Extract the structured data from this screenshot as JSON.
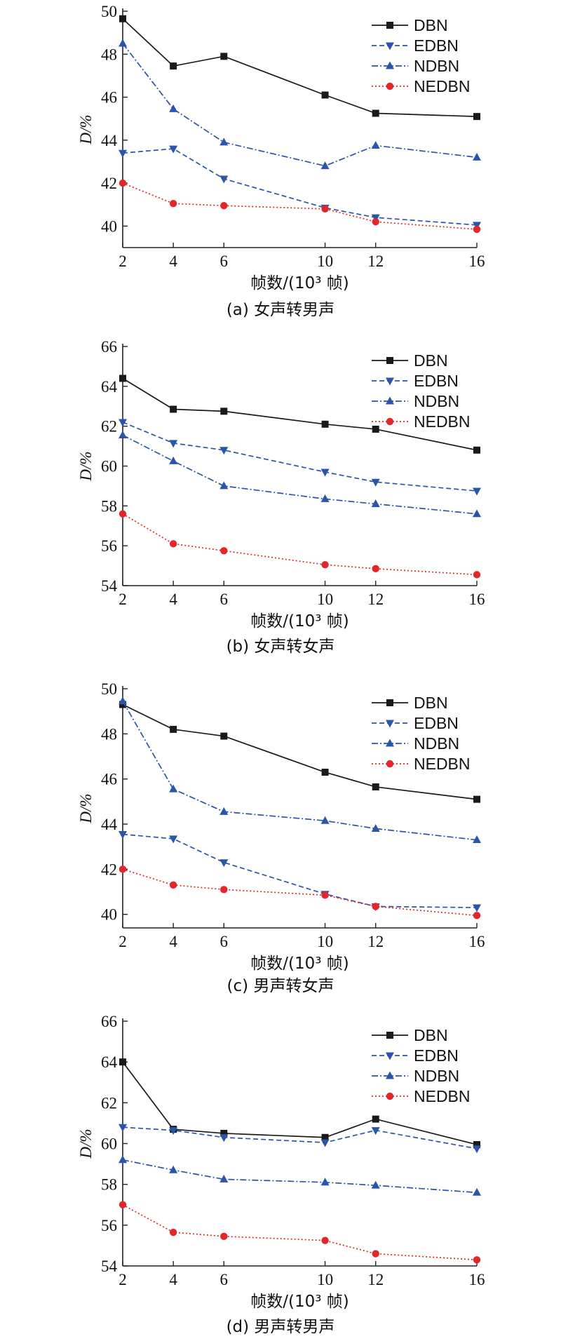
{
  "chart_data": [
    {
      "type": "line",
      "caption": "(a) 女声转男声",
      "xlabel": "帧数/(10³ 帧)",
      "ylabel": "D/%",
      "x": [
        2,
        4,
        6,
        10,
        12,
        16
      ],
      "ylim": [
        39,
        50
      ],
      "yticks": [
        40,
        42,
        44,
        46,
        48,
        50
      ],
      "legend_position": "top-right",
      "series": [
        {
          "name": "DBN",
          "values": [
            49.65,
            47.45,
            47.9,
            46.1,
            45.25,
            45.1
          ]
        },
        {
          "name": "EDBN",
          "values": [
            43.4,
            43.6,
            42.2,
            40.85,
            40.4,
            40.05
          ]
        },
        {
          "name": "NDBN",
          "values": [
            48.5,
            45.45,
            43.9,
            42.8,
            43.75,
            43.2
          ]
        },
        {
          "name": "NEDBN",
          "values": [
            42.0,
            41.05,
            40.95,
            40.8,
            40.2,
            39.85
          ]
        }
      ]
    },
    {
      "type": "line",
      "caption": "(b) 女声转女声",
      "xlabel": "帧数/(10³ 帧)",
      "ylabel": "D/%",
      "x": [
        2,
        4,
        6,
        10,
        12,
        16
      ],
      "ylim": [
        54,
        66
      ],
      "yticks": [
        54,
        56,
        58,
        60,
        62,
        64,
        66
      ],
      "legend_position": "top-right",
      "series": [
        {
          "name": "DBN",
          "values": [
            64.4,
            62.85,
            62.75,
            62.1,
            61.85,
            60.8
          ]
        },
        {
          "name": "EDBN",
          "values": [
            62.2,
            61.15,
            60.8,
            59.7,
            59.2,
            58.75
          ]
        },
        {
          "name": "NDBN",
          "values": [
            61.55,
            60.25,
            59.0,
            58.35,
            58.1,
            57.6
          ]
        },
        {
          "name": "NEDBN",
          "values": [
            57.6,
            56.1,
            55.75,
            55.05,
            54.85,
            54.55
          ]
        }
      ]
    },
    {
      "type": "line",
      "caption": "(c) 男声转女声",
      "xlabel": "帧数/(10³ 帧)",
      "ylabel": "D/%",
      "x": [
        2,
        4,
        6,
        10,
        12,
        16
      ],
      "ylim": [
        39.4,
        50
      ],
      "yticks": [
        40,
        42,
        44,
        46,
        48,
        50
      ],
      "legend_position": "top-right",
      "series": [
        {
          "name": "DBN",
          "values": [
            49.3,
            48.2,
            47.9,
            46.3,
            45.65,
            45.1
          ]
        },
        {
          "name": "EDBN",
          "values": [
            43.55,
            43.35,
            42.3,
            40.9,
            40.35,
            40.3
          ]
        },
        {
          "name": "NDBN",
          "values": [
            49.45,
            45.55,
            44.55,
            44.15,
            43.8,
            43.3
          ]
        },
        {
          "name": "NEDBN",
          "values": [
            42.0,
            41.3,
            41.1,
            40.85,
            40.35,
            39.95
          ]
        }
      ]
    },
    {
      "type": "line",
      "caption": "(d) 男声转男声",
      "xlabel": "帧数/(10³ 帧)",
      "ylabel": "D/%",
      "x": [
        2,
        4,
        6,
        10,
        12,
        16
      ],
      "ylim": [
        54,
        66
      ],
      "yticks": [
        54,
        56,
        58,
        60,
        62,
        64,
        66
      ],
      "legend_position": "top-right",
      "series": [
        {
          "name": "DBN",
          "values": [
            64.0,
            60.7,
            60.5,
            60.3,
            61.2,
            59.95
          ]
        },
        {
          "name": "EDBN",
          "values": [
            60.8,
            60.65,
            60.3,
            60.05,
            60.65,
            59.75
          ]
        },
        {
          "name": "NDBN",
          "values": [
            59.2,
            58.7,
            58.25,
            58.1,
            57.95,
            57.6
          ]
        },
        {
          "name": "NEDBN",
          "values": [
            57.0,
            55.65,
            55.45,
            55.25,
            54.6,
            54.3
          ]
        }
      ]
    }
  ],
  "series_style": {
    "DBN": {
      "color": "#1a1a1a",
      "dash": "",
      "marker": "square"
    },
    "EDBN": {
      "color": "#2b55a8",
      "dash": "7,4",
      "marker": "triangle-down"
    },
    "NDBN": {
      "color": "#2b55a8",
      "dash": "9,3,2,3",
      "marker": "triangle-up"
    },
    "NEDBN": {
      "color": "#e0282a",
      "dash": "2,3",
      "marker": "circle"
    }
  }
}
